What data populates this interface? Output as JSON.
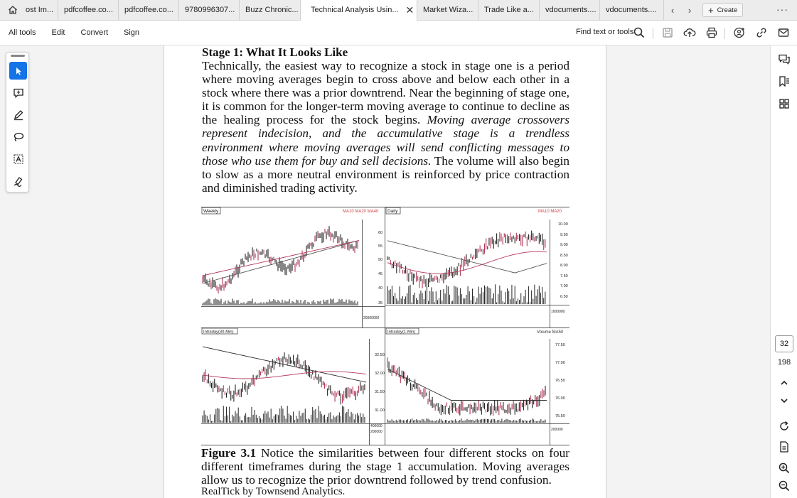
{
  "tabs": [
    {
      "label": "ost Im..."
    },
    {
      "label": "pdfcoffee.co..."
    },
    {
      "label": "pdfcoffee.co..."
    },
    {
      "label": "9780996307..."
    },
    {
      "label": "Buzz Chronic..."
    },
    {
      "label": "Technical Analysis Usin..."
    },
    {
      "label": "Market Wiza..."
    },
    {
      "label": "Trade Like a..."
    },
    {
      "label": "vdocuments...."
    },
    {
      "label": "vdocuments...."
    }
  ],
  "create_label": "Create",
  "toolbar": {
    "menu": [
      "All tools",
      "Edit",
      "Convert",
      "Sign"
    ],
    "find_label": "Find text or tools"
  },
  "document": {
    "stage_title": "Stage 1:  What It Looks Like",
    "para_normal_1": "Technically, the easiest way to recognize a stock in stage one is a period where moving averages begin to cross above and below each other in a stock where there was a prior downtrend.  Near the beginning of stage one, it is common for the longer-term moving average to continue to decline as the healing process for the stock begins. ",
    "para_italic": "Moving average crossovers represent indecision, and the accumulative stage is a trendless environment where moving averages will send conflicting messages to those who use them for buy and sell decisions.",
    "para_normal_2": " The volume will also begin to slow as a more neutral environment is reinforced by price contraction and diminished trading activity.",
    "caption_bold": "Figure 3.1",
    "caption_text": " Notice the similarities between four different stocks on four different timeframes during the stage 1 accumulation.  Moving averages allow us to recognize the prior downtrend followed by trend confusion.",
    "credit": "RealTick by Townsend Analytics."
  },
  "figure": {
    "panels": [
      {
        "label": "Weekly",
        "legend": "MA10  MA20  MA40",
        "axis": [
          "60",
          "55",
          "50",
          "45",
          "40",
          "35"
        ],
        "vol_label": "20000000"
      },
      {
        "label": "Daily",
        "legend": "MA10  MA20",
        "axis": [
          "10.00",
          "9.50",
          "9.00",
          "8.50",
          "8.00",
          "7.50",
          "7.00",
          "6.50"
        ],
        "vol_label": "1000000"
      },
      {
        "label": "Intraday(30-Min)",
        "legend": "",
        "axis": [
          "32.50",
          "32.00",
          "31.50",
          "31.00"
        ],
        "vol_label": "400000"
      },
      {
        "label": "Intraday(1-Min)",
        "legend": "Volume  MA50",
        "axis": [
          "77.50",
          "77.00",
          "76.50",
          "76.00",
          "75.50"
        ],
        "vol_label": "200000"
      }
    ],
    "vol_label_b": "200000"
  },
  "pagination": {
    "current": "32",
    "total": "198"
  }
}
